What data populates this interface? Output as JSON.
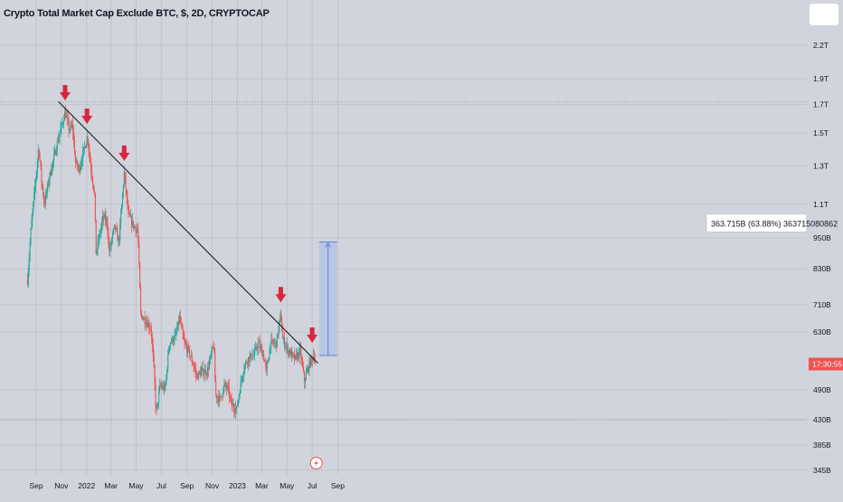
{
  "title": "Crypto Total Market Cap Exclude BTC, $, 2D, CRYPTOCAP",
  "colors": {
    "background": "#d1d4dc",
    "grid": "#c0c3cc",
    "up": "#26a69a",
    "down": "#ef5350",
    "arrow": "#d7263d",
    "trendline": "#1c1c1c",
    "measure_fill": "#b7c4e6",
    "measure_stroke": "#5b7ee0",
    "price_tag": "#ef5350"
  },
  "chart_data": {
    "type": "candlestick",
    "scale": "log",
    "y_unit": "USD",
    "ylim": [
      338000000000,
      2500000000000
    ],
    "x_tick_labels": [
      "Sep",
      "Nov",
      "2022",
      "Mar",
      "May",
      "Jul",
      "Sep",
      "Nov",
      "2023",
      "Mar",
      "May",
      "Jul",
      "Sep"
    ],
    "y_tick_labels": [
      "2.2T",
      "1.9T",
      "1.7T",
      "1.5T",
      "1.3T",
      "1.1T",
      "950B",
      "830B",
      "710B",
      "630B",
      "490B",
      "430B",
      "385B",
      "345B"
    ],
    "y_tick_values": [
      2200000000000.0,
      1900000000000.0,
      1700000000000.0,
      1500000000000.0,
      1300000000000.0,
      1100000000000.0,
      950000000000.0,
      830000000000.0,
      710000000000.0,
      630000000000.0,
      490000000000.0,
      430000000000.0,
      385000000000.0,
      345000000000.0
    ],
    "close_path": [
      [
        "2021-08-11",
        790000000000.0
      ],
      [
        "2021-08-20",
        1000000000000.0
      ],
      [
        "2021-09-02",
        1280000000000.0
      ],
      [
        "2021-09-07",
        1420000000000.0
      ],
      [
        "2021-09-14",
        1220000000000.0
      ],
      [
        "2021-09-21",
        1100000000000.0
      ],
      [
        "2021-10-01",
        1220000000000.0
      ],
      [
        "2021-10-15",
        1360000000000.0
      ],
      [
        "2021-10-28",
        1500000000000.0
      ],
      [
        "2021-11-10",
        1640000000000.0
      ],
      [
        "2021-11-20",
        1520000000000.0
      ],
      [
        "2021-11-28",
        1550000000000.0
      ],
      [
        "2021-12-05",
        1320000000000.0
      ],
      [
        "2021-12-14",
        1280000000000.0
      ],
      [
        "2021-12-22",
        1360000000000.0
      ],
      [
        "2022-01-03",
        1480000000000.0
      ],
      [
        "2022-01-10",
        1320000000000.0
      ],
      [
        "2022-01-20",
        1150000000000.0
      ],
      [
        "2022-01-24",
        890000000000.0
      ],
      [
        "2022-02-10",
        1040000000000.0
      ],
      [
        "2022-02-20",
        1020000000000.0
      ],
      [
        "2022-02-24",
        890000000000.0
      ],
      [
        "2022-03-10",
        1000000000000.0
      ],
      [
        "2022-03-20",
        930000000000.0
      ],
      [
        "2022-04-02",
        1260000000000.0
      ],
      [
        "2022-04-12",
        1050000000000.0
      ],
      [
        "2022-04-25",
        1000000000000.0
      ],
      [
        "2022-05-05",
        980000000000.0
      ],
      [
        "2022-05-12",
        680000000000.0
      ],
      [
        "2022-05-25",
        660000000000.0
      ],
      [
        "2022-06-06",
        640000000000.0
      ],
      [
        "2022-06-14",
        520000000000.0
      ],
      [
        "2022-06-18",
        440000000000.0
      ],
      [
        "2022-06-28",
        500000000000.0
      ],
      [
        "2022-07-10",
        490000000000.0
      ],
      [
        "2022-07-20",
        600000000000.0
      ],
      [
        "2022-08-05",
        620000000000.0
      ],
      [
        "2022-08-14",
        670000000000.0
      ],
      [
        "2022-08-25",
        600000000000.0
      ],
      [
        "2022-09-05",
        580000000000.0
      ],
      [
        "2022-09-15",
        550000000000.0
      ],
      [
        "2022-09-25",
        520000000000.0
      ],
      [
        "2022-10-06",
        530000000000.0
      ],
      [
        "2022-10-20",
        530000000000.0
      ],
      [
        "2022-11-05",
        600000000000.0
      ],
      [
        "2022-11-09",
        480000000000.0
      ],
      [
        "2022-11-20",
        470000000000.0
      ],
      [
        "2022-12-01",
        500000000000.0
      ],
      [
        "2022-12-10",
        490000000000.0
      ],
      [
        "2022-12-17",
        460000000000.0
      ],
      [
        "2022-12-30",
        450000000000.0
      ],
      [
        "2023-01-14",
        530000000000.0
      ],
      [
        "2023-01-25",
        560000000000.0
      ],
      [
        "2023-02-10",
        570000000000.0
      ],
      [
        "2023-02-20",
        600000000000.0
      ],
      [
        "2023-03-05",
        570000000000.0
      ],
      [
        "2023-03-12",
        530000000000.0
      ],
      [
        "2023-03-22",
        600000000000.0
      ],
      [
        "2023-04-05",
        600000000000.0
      ],
      [
        "2023-04-16",
        680000000000.0
      ],
      [
        "2023-04-21",
        610000000000.0
      ],
      [
        "2023-05-05",
        580000000000.0
      ],
      [
        "2023-05-20",
        560000000000.0
      ],
      [
        "2023-06-02",
        580000000000.0
      ],
      [
        "2023-06-12",
        510000000000.0
      ],
      [
        "2023-06-25",
        550000000000.0
      ],
      [
        "2023-07-05",
        570000000000.0
      ],
      [
        "2023-07-08",
        560000000000.0
      ]
    ],
    "trendline": {
      "start": [
        "2021-10-25",
        1720000000000.0
      ],
      "end": [
        "2023-07-15",
        550000000000.0
      ]
    },
    "horizontal_levels": [
      1720000000000.0,
      430000000000.0
    ],
    "peak_markers": [
      "2021-11-10",
      "2022-01-02",
      "2022-04-02",
      "2023-04-16",
      "2023-07-01"
    ],
    "measurement": {
      "label": "363.715B (63.88%) 363715080862",
      "from_date": "2023-07-18",
      "to_date": "2023-08-30",
      "from_value": 569000000000.0,
      "to_value": 933000000000.0
    },
    "last_price_label": "17:30:55",
    "last_price_value": 548000000000.0
  }
}
